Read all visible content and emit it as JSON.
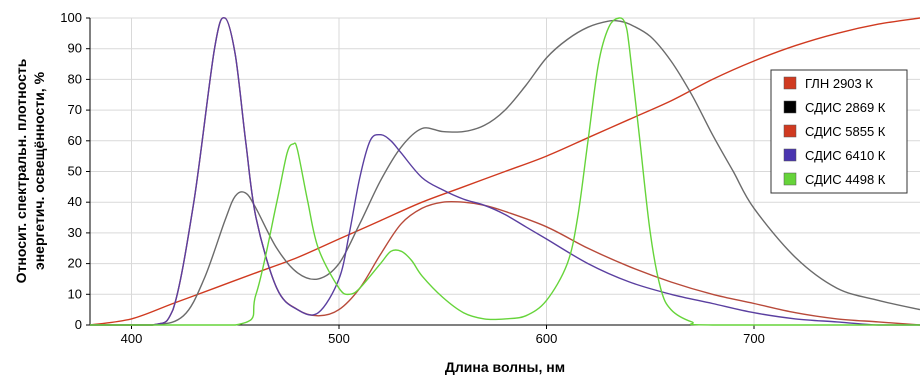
{
  "chart_data": {
    "type": "line",
    "xlabel": "Длина волны, нм",
    "ylabel_lines": [
      "Относит. спектральн. плотность",
      "энергетич. освещённости, %"
    ],
    "xlim": [
      380,
      780
    ],
    "ylim": [
      0,
      100
    ],
    "x_ticks": [
      400,
      500,
      600,
      700
    ],
    "y_ticks": [
      0,
      10,
      20,
      30,
      40,
      50,
      60,
      70,
      80,
      90,
      100
    ],
    "grid": true,
    "legend_position": "right",
    "series": [
      {
        "name": "ГЛН 2903 К",
        "color": "#d03a20",
        "x": [
          380,
          400,
          420,
          440,
          460,
          480,
          500,
          520,
          540,
          560,
          580,
          600,
          620,
          640,
          660,
          680,
          700,
          720,
          740,
          760,
          780
        ],
        "y": [
          0,
          2,
          7,
          12,
          17,
          22,
          28,
          34,
          40,
          45,
          50,
          55,
          61,
          67,
          73,
          80,
          86,
          91,
          95,
          98,
          100
        ]
      },
      {
        "name": "СДИС 2869 К",
        "color": "#6b6b6b",
        "x": [
          380,
          410,
          425,
          435,
          445,
          450,
          455,
          460,
          470,
          480,
          490,
          500,
          510,
          520,
          530,
          540,
          550,
          560,
          570,
          580,
          590,
          600,
          610,
          620,
          630,
          635,
          640,
          650,
          660,
          670,
          680,
          690,
          700,
          720,
          740,
          760,
          780
        ],
        "y": [
          0,
          0,
          3,
          15,
          34,
          42,
          43,
          38,
          25,
          17,
          15,
          20,
          33,
          47,
          58,
          64,
          63,
          63,
          65,
          70,
          78,
          87,
          93,
          97,
          99,
          99,
          98,
          94,
          86,
          75,
          62,
          50,
          38,
          22,
          12,
          8,
          5
        ]
      },
      {
        "name": "СДИС 5855 К",
        "color": "#b84a3a",
        "x": [
          380,
          410,
          420,
          430,
          440,
          445,
          450,
          455,
          460,
          470,
          480,
          490,
          500,
          510,
          520,
          530,
          540,
          550,
          560,
          570,
          580,
          600,
          620,
          640,
          660,
          680,
          700,
          720,
          740,
          760,
          780
        ],
        "y": [
          0,
          0,
          5,
          40,
          90,
          100,
          88,
          60,
          35,
          12,
          5,
          3,
          5,
          12,
          23,
          33,
          38,
          40,
          40,
          39,
          37,
          32,
          25,
          19,
          14,
          10,
          7,
          4,
          2,
          1,
          0
        ]
      },
      {
        "name": "СДИС 6410 К",
        "color": "#5a3fa0",
        "x": [
          380,
          410,
          420,
          430,
          440,
          445,
          450,
          455,
          460,
          470,
          480,
          490,
          500,
          505,
          510,
          515,
          520,
          525,
          530,
          540,
          550,
          560,
          570,
          580,
          590,
          600,
          620,
          640,
          660,
          680,
          700,
          720,
          740,
          760,
          780
        ],
        "y": [
          0,
          0,
          5,
          40,
          90,
          100,
          88,
          60,
          35,
          12,
          5,
          4,
          15,
          30,
          48,
          60,
          62,
          60,
          56,
          48,
          44,
          41,
          39,
          36,
          32,
          28,
          20,
          14,
          10,
          7,
          4,
          2,
          1,
          0,
          0
        ]
      },
      {
        "name": "СДИС 4498 К",
        "color": "#66d43a",
        "x": [
          380,
          450,
          460,
          470,
          475,
          478,
          480,
          485,
          490,
          500,
          505,
          510,
          520,
          525,
          530,
          535,
          540,
          550,
          560,
          570,
          580,
          590,
          600,
          610,
          615,
          620,
          625,
          630,
          635,
          638,
          640,
          645,
          650,
          655,
          660,
          670,
          680,
          780
        ],
        "y": [
          0,
          0,
          10,
          40,
          56,
          59,
          57,
          40,
          25,
          12,
          10,
          12,
          20,
          24,
          24,
          21,
          16,
          9,
          4,
          2,
          2,
          3,
          8,
          20,
          35,
          60,
          85,
          97,
          100,
          98,
          90,
          60,
          30,
          12,
          5,
          1,
          0,
          0
        ]
      }
    ]
  }
}
